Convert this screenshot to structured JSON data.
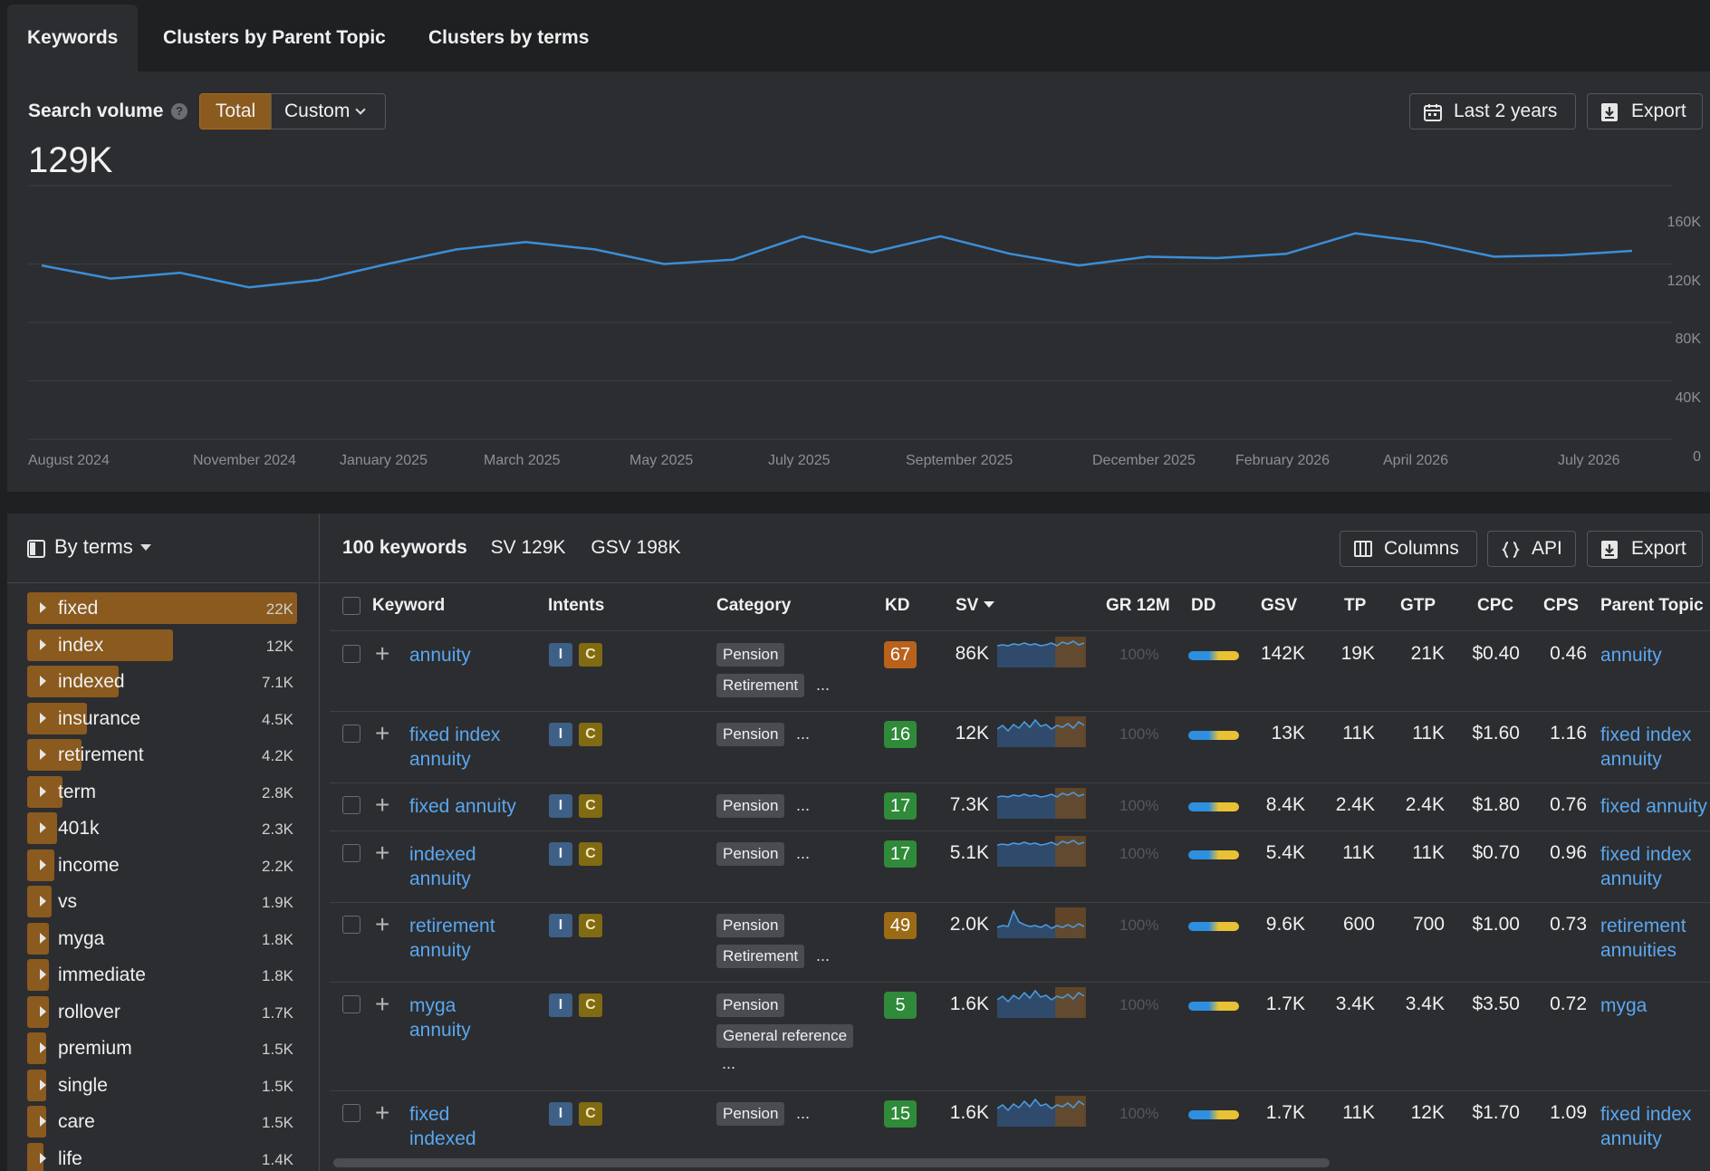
{
  "tabs": [
    "Keywords",
    "Clusters by Parent Topic",
    "Clusters by terms"
  ],
  "search_volume": {
    "label": "Search volume",
    "help": "?",
    "total_label": "Total",
    "custom_label": "Custom",
    "value": "129K",
    "date_range_label": "Last 2 years",
    "export_label": "Export"
  },
  "chart_data": {
    "type": "line",
    "x_tick_labels": [
      "August 2024",
      "November 2024",
      "January 2025",
      "March 2025",
      "May 2025",
      "July 2025",
      "September 2025",
      "December 2025",
      "February 2026",
      "April 2026",
      "July 2026"
    ],
    "y_tick_labels": [
      "160K",
      "120K",
      "80K",
      "40K",
      "0"
    ],
    "ylim": [
      0,
      160000
    ],
    "values": [
      119000,
      110000,
      114000,
      104000,
      109000,
      120000,
      130000,
      135000,
      130000,
      120000,
      123000,
      139000,
      128000,
      139000,
      127000,
      119000,
      125000,
      124000,
      127000,
      141000,
      135000,
      125000,
      126000,
      129000
    ],
    "line_color": "#3b8ed8",
    "grid": true
  },
  "sidebar": {
    "group_label": "By terms",
    "terms": [
      {
        "name": "fixed",
        "count": "22K",
        "share": 1.0
      },
      {
        "name": "index",
        "count": "12K",
        "share": 0.54
      },
      {
        "name": "indexed",
        "count": "7.1K",
        "share": 0.34
      },
      {
        "name": "insurance",
        "count": "4.5K",
        "share": 0.22
      },
      {
        "name": "retirement",
        "count": "4.2K",
        "share": 0.2
      },
      {
        "name": "term",
        "count": "2.8K",
        "share": 0.13
      },
      {
        "name": "401k",
        "count": "2.3K",
        "share": 0.11
      },
      {
        "name": "income",
        "count": "2.2K",
        "share": 0.1
      },
      {
        "name": "vs",
        "count": "1.9K",
        "share": 0.09
      },
      {
        "name": "myga",
        "count": "1.8K",
        "share": 0.08
      },
      {
        "name": "immediate",
        "count": "1.8K",
        "share": 0.08
      },
      {
        "name": "rollover",
        "count": "1.7K",
        "share": 0.08
      },
      {
        "name": "premium",
        "count": "1.5K",
        "share": 0.07
      },
      {
        "name": "single",
        "count": "1.5K",
        "share": 0.07
      },
      {
        "name": "care",
        "count": "1.5K",
        "share": 0.07
      },
      {
        "name": "life",
        "count": "1.4K",
        "share": 0.06
      }
    ]
  },
  "summary": {
    "keywords": "100 keywords",
    "sv": "SV 129K",
    "gsv": "GSV 198K",
    "columns_label": "Columns",
    "api_label": "API",
    "export_label": "Export"
  },
  "columns": [
    "Keyword",
    "Intents",
    "Category",
    "KD",
    "SV",
    "GR 12M",
    "DD",
    "GSV",
    "TP",
    "GTP",
    "CPC",
    "CPS",
    "Parent Topic"
  ],
  "gr_placeholder": "100%",
  "rows": [
    {
      "kw1": "annuity",
      "kw2": "",
      "intents": [
        "I",
        "C"
      ],
      "tags": [
        "Pension",
        "Retirement"
      ],
      "more": "...",
      "kd": "67",
      "kd_color": "#b8621c",
      "sv": "86K",
      "gsv": "142K",
      "tp": "19K",
      "gtp": "21K",
      "cpc": "$0.40",
      "cps": "0.46",
      "pt1": "annuity",
      "pt2": "",
      "trend": "A"
    },
    {
      "kw1": "fixed index",
      "kw2": "annuity",
      "intents": [
        "I",
        "C"
      ],
      "tags": [
        "Pension"
      ],
      "more": "...",
      "kd": "16",
      "kd_color": "#2f8a3a",
      "sv": "12K",
      "gsv": "13K",
      "tp": "11K",
      "gtp": "11K",
      "cpc": "$1.60",
      "cps": "1.16",
      "pt1": "fixed index",
      "pt2": "annuity",
      "trend": "B"
    },
    {
      "kw1": "fixed annuity",
      "kw2": "",
      "intents": [
        "I",
        "C"
      ],
      "tags": [
        "Pension"
      ],
      "more": "...",
      "kd": "17",
      "kd_color": "#2f8a3a",
      "sv": "7.3K",
      "gsv": "8.4K",
      "tp": "2.4K",
      "gtp": "2.4K",
      "cpc": "$1.80",
      "cps": "0.76",
      "pt1": "fixed annuity",
      "pt2": "",
      "trend": "A"
    },
    {
      "kw1": "indexed",
      "kw2": "annuity",
      "intents": [
        "I",
        "C"
      ],
      "tags": [
        "Pension"
      ],
      "more": "...",
      "kd": "17",
      "kd_color": "#2f8a3a",
      "sv": "5.1K",
      "gsv": "5.4K",
      "tp": "11K",
      "gtp": "11K",
      "cpc": "$0.70",
      "cps": "0.96",
      "pt1": "fixed index",
      "pt2": "annuity",
      "trend": "A"
    },
    {
      "kw1": "retirement",
      "kw2": "annuity",
      "intents": [
        "I",
        "C"
      ],
      "tags": [
        "Pension",
        "Retirement"
      ],
      "more": "...",
      "kd": "49",
      "kd_color": "#9a6a14",
      "sv": "2.0K",
      "gsv": "9.6K",
      "tp": "600",
      "gtp": "700",
      "cpc": "$1.00",
      "cps": "0.73",
      "pt1": "retirement",
      "pt2": "annuities",
      "trend": "C"
    },
    {
      "kw1": "myga",
      "kw2": "annuity",
      "intents": [
        "I",
        "C"
      ],
      "tags": [
        "Pension",
        "General reference"
      ],
      "more": "...",
      "kd": "5",
      "kd_color": "#2f8a3a",
      "sv": "1.6K",
      "gsv": "1.7K",
      "tp": "3.4K",
      "gtp": "3.4K",
      "cpc": "$3.50",
      "cps": "0.72",
      "pt1": "myga",
      "pt2": "",
      "trend": "B"
    },
    {
      "kw1": "fixed",
      "kw2": "indexed",
      "intents": [
        "I",
        "C"
      ],
      "tags": [
        "Pension"
      ],
      "more": "...",
      "kd": "15",
      "kd_color": "#2f8a3a",
      "sv": "1.6K",
      "gsv": "1.7K",
      "tp": "11K",
      "gtp": "12K",
      "cpc": "$1.70",
      "cps": "1.09",
      "pt1": "fixed index",
      "pt2": "annuity",
      "trend": "B"
    }
  ]
}
